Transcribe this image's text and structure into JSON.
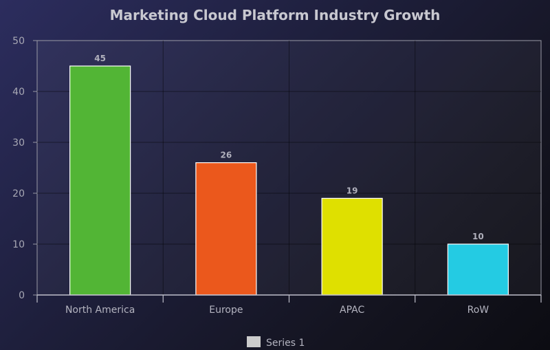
{
  "chart_data": {
    "type": "bar",
    "title": "Marketing Cloud Platform Industry Growth",
    "categories": [
      "North America",
      "Europe",
      "APAC",
      "RoW"
    ],
    "series": [
      {
        "name": "Series 1",
        "values": [
          45,
          26,
          19,
          10
        ]
      }
    ],
    "bar_colors": [
      "#52b535",
      "#eb581c",
      "#dfe000",
      "#24cbe3"
    ],
    "legend_swatch_color": "#cccccc",
    "ylim": [
      0,
      50
    ],
    "yticks": [
      0,
      10,
      20,
      30,
      40,
      50
    ],
    "grid": true,
    "legend_position": "bottom-center",
    "show_value_labels": true
  }
}
